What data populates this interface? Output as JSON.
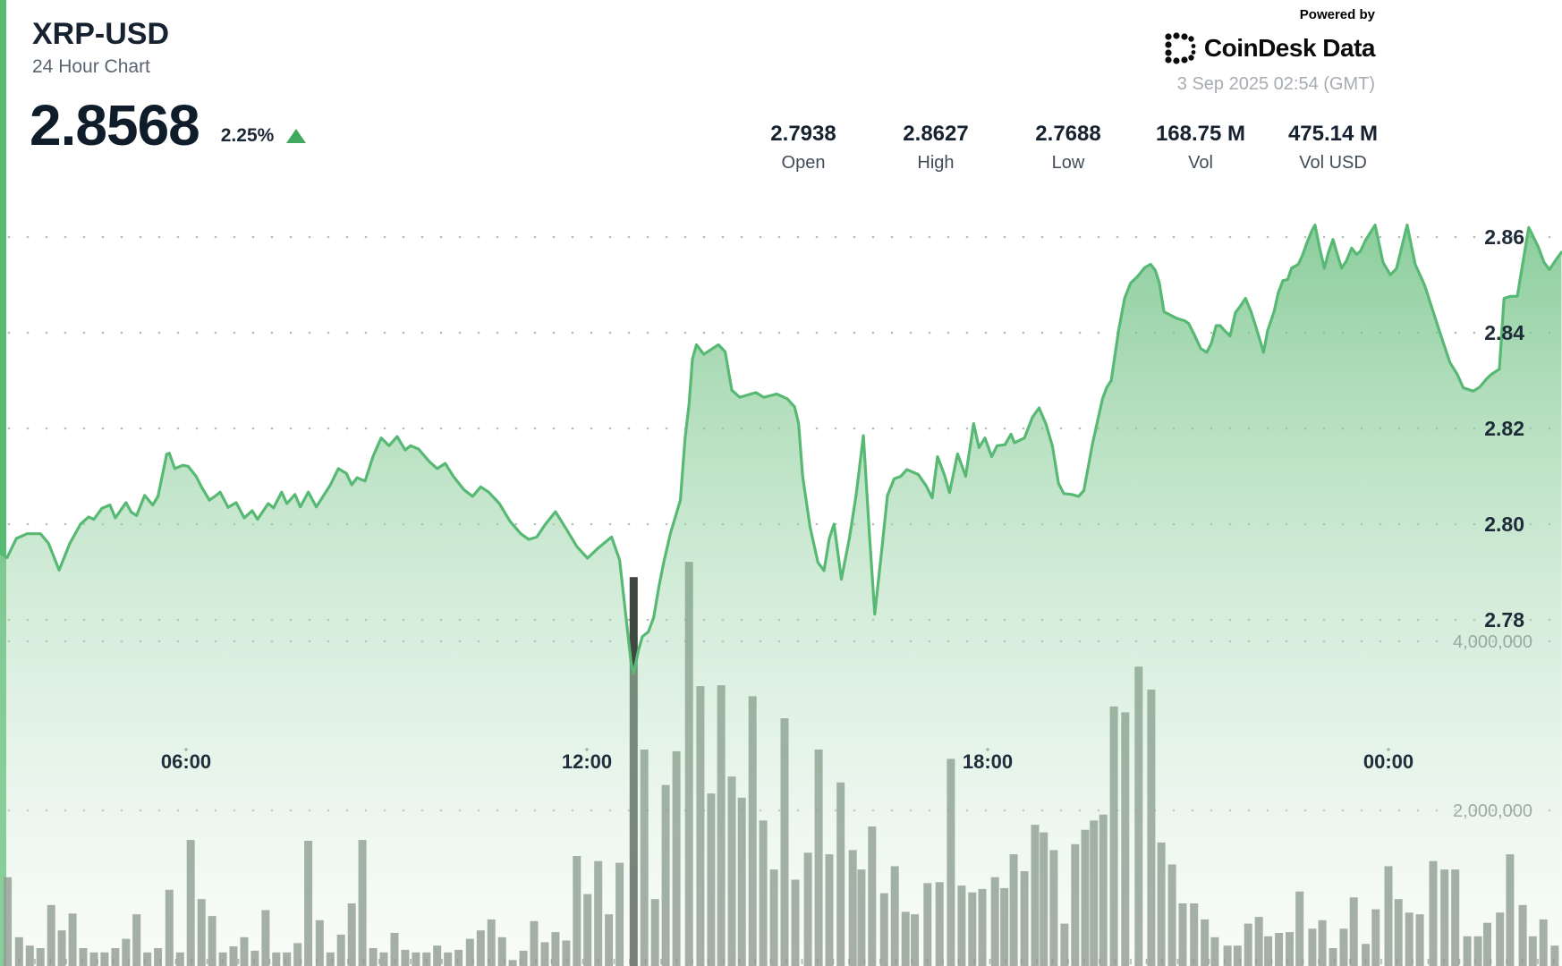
{
  "header": {
    "symbol": "XRP-USD",
    "subtitle": "24 Hour Chart",
    "price": "2.8568",
    "change_percent": "2.25%",
    "change_direction": "up"
  },
  "stats": [
    {
      "value": "2.7938",
      "label": "Open"
    },
    {
      "value": "2.8627",
      "label": "High"
    },
    {
      "value": "2.7688",
      "label": "Low"
    },
    {
      "value": "168.75 M",
      "label": "Vol"
    },
    {
      "value": "475.14 M",
      "label": "Vol USD"
    }
  ],
  "branding": {
    "powered_by": "Powered by",
    "brand": "CoinDesk Data",
    "timestamp": "3 Sep 2025 02:54 (GMT)"
  },
  "chart_data": {
    "type": "area",
    "title": "XRP-USD 24 Hour Chart",
    "x_axis": {
      "tick_labels": [
        "06:00",
        "12:00",
        "18:00",
        "00:00"
      ],
      "tick_hours": [
        6,
        12,
        18,
        24
      ],
      "start_hour": 3.21,
      "end_hour": 26.6,
      "grid": "dotted"
    },
    "price_axis": {
      "side": "right",
      "ticks": [
        2.86,
        2.84,
        2.82,
        2.8,
        2.78
      ],
      "tick_labels": [
        "2.86",
        "2.84",
        "2.82",
        "2.80",
        "2.78"
      ]
    },
    "volume_axis": {
      "side": "right",
      "ticks_millions": [
        4,
        2
      ],
      "tick_labels": [
        "4,000,000",
        "2,000,000"
      ]
    },
    "summary": {
      "open": 2.7938,
      "high": 2.8627,
      "low": 2.7688,
      "close": 2.8568,
      "volume": "168.75M XRP",
      "volume_usd": "475.14M"
    },
    "colors": {
      "accent_strip": "#57bb71",
      "line": "#57b973",
      "fill_top": "rgba(104,190,126,0.78)",
      "fill_mid": "rgba(160,214,172,0.52)",
      "fill_bottom": "rgba(236,245,238,0.32)",
      "volume_bar": "rgba(99,112,100,0.80)",
      "volume_bar_dark": "#3f4741",
      "grid_dot": "rgba(110,120,115,0.50)",
      "up_green": "#3fa95d"
    },
    "price_series": [
      [
        3.21,
        2.794
      ],
      [
        3.32,
        2.793
      ],
      [
        3.46,
        2.797
      ],
      [
        3.62,
        2.798
      ],
      [
        3.82,
        2.798
      ],
      [
        3.94,
        2.796
      ],
      [
        4.1,
        2.7904
      ],
      [
        4.26,
        2.796
      ],
      [
        4.42,
        2.8
      ],
      [
        4.54,
        2.8015
      ],
      [
        4.62,
        2.801
      ],
      [
        4.74,
        2.8033
      ],
      [
        4.86,
        2.804
      ],
      [
        4.94,
        2.8013
      ],
      [
        5.1,
        2.8045
      ],
      [
        5.18,
        2.8025
      ],
      [
        5.26,
        2.8018
      ],
      [
        5.38,
        2.806
      ],
      [
        5.5,
        2.804
      ],
      [
        5.58,
        2.8058
      ],
      [
        5.71,
        2.8146
      ],
      [
        5.75,
        2.8148
      ],
      [
        5.83,
        2.8116
      ],
      [
        5.95,
        2.8123
      ],
      [
        6.03,
        2.8121
      ],
      [
        6.15,
        2.81
      ],
      [
        6.23,
        2.8078
      ],
      [
        6.35,
        2.805
      ],
      [
        6.43,
        2.8058
      ],
      [
        6.51,
        2.8067
      ],
      [
        6.63,
        2.8035
      ],
      [
        6.75,
        2.8045
      ],
      [
        6.87,
        2.8013
      ],
      [
        6.99,
        2.8028
      ],
      [
        7.07,
        2.801
      ],
      [
        7.23,
        2.8043
      ],
      [
        7.31,
        2.8034
      ],
      [
        7.43,
        2.8067
      ],
      [
        7.51,
        2.8043
      ],
      [
        7.63,
        2.8062
      ],
      [
        7.71,
        2.8036
      ],
      [
        7.83,
        2.8067
      ],
      [
        7.95,
        2.8036
      ],
      [
        8.16,
        2.8082
      ],
      [
        8.28,
        2.8116
      ],
      [
        8.4,
        2.8106
      ],
      [
        8.48,
        2.8082
      ],
      [
        8.56,
        2.8097
      ],
      [
        8.68,
        2.809
      ],
      [
        8.8,
        2.8142
      ],
      [
        8.92,
        2.818
      ],
      [
        9.04,
        2.8164
      ],
      [
        9.16,
        2.8183
      ],
      [
        9.28,
        2.8155
      ],
      [
        9.36,
        2.8164
      ],
      [
        9.48,
        2.8157
      ],
      [
        9.64,
        2.8131
      ],
      [
        9.76,
        2.8116
      ],
      [
        9.88,
        2.8127
      ],
      [
        10.0,
        2.81
      ],
      [
        10.16,
        2.8072
      ],
      [
        10.29,
        2.8058
      ],
      [
        10.41,
        2.8078
      ],
      [
        10.53,
        2.8067
      ],
      [
        10.69,
        2.8043
      ],
      [
        10.85,
        2.8006
      ],
      [
        11.01,
        2.798
      ],
      [
        11.13,
        2.7968
      ],
      [
        11.25,
        2.7973
      ],
      [
        11.38,
        2.8
      ],
      [
        11.53,
        2.8026
      ],
      [
        11.69,
        2.799
      ],
      [
        11.85,
        2.7953
      ],
      [
        12.01,
        2.7929
      ],
      [
        12.17,
        2.795
      ],
      [
        12.37,
        2.7973
      ],
      [
        12.49,
        2.7925
      ],
      [
        12.59,
        2.78
      ],
      [
        12.66,
        2.7712
      ],
      [
        12.7,
        2.7688
      ],
      [
        12.77,
        2.7735
      ],
      [
        12.83,
        2.7765
      ],
      [
        12.92,
        2.7775
      ],
      [
        13.0,
        2.7805
      ],
      [
        13.08,
        2.787
      ],
      [
        13.15,
        2.792
      ],
      [
        13.25,
        2.798
      ],
      [
        13.4,
        2.805
      ],
      [
        13.47,
        2.818
      ],
      [
        13.53,
        2.825
      ],
      [
        13.58,
        2.8345
      ],
      [
        13.64,
        2.8375
      ],
      [
        13.75,
        2.8355
      ],
      [
        13.86,
        2.8365
      ],
      [
        13.97,
        2.8375
      ],
      [
        14.07,
        2.836
      ],
      [
        14.17,
        2.828
      ],
      [
        14.29,
        2.8265
      ],
      [
        14.41,
        2.827
      ],
      [
        14.53,
        2.8275
      ],
      [
        14.65,
        2.8265
      ],
      [
        14.84,
        2.8272
      ],
      [
        15.0,
        2.8262
      ],
      [
        15.11,
        2.8245
      ],
      [
        15.17,
        2.821
      ],
      [
        15.23,
        2.81
      ],
      [
        15.34,
        2.7995
      ],
      [
        15.46,
        2.792
      ],
      [
        15.55,
        2.7903
      ],
      [
        15.63,
        2.797
      ],
      [
        15.7,
        2.8
      ],
      [
        15.81,
        2.7885
      ],
      [
        15.93,
        2.797
      ],
      [
        16.03,
        2.806
      ],
      [
        16.14,
        2.8185
      ],
      [
        16.23,
        2.798
      ],
      [
        16.31,
        2.7812
      ],
      [
        16.41,
        2.794
      ],
      [
        16.5,
        2.806
      ],
      [
        16.6,
        2.8095
      ],
      [
        16.7,
        2.81
      ],
      [
        16.79,
        2.8114
      ],
      [
        16.96,
        2.8104
      ],
      [
        17.08,
        2.808
      ],
      [
        17.17,
        2.8055
      ],
      [
        17.25,
        2.8141
      ],
      [
        17.35,
        2.8104
      ],
      [
        17.43,
        2.8066
      ],
      [
        17.55,
        2.8147
      ],
      [
        17.67,
        2.81
      ],
      [
        17.79,
        2.821
      ],
      [
        17.87,
        2.816
      ],
      [
        17.96,
        2.818
      ],
      [
        18.06,
        2.8141
      ],
      [
        18.14,
        2.8164
      ],
      [
        18.26,
        2.8166
      ],
      [
        18.35,
        2.8188
      ],
      [
        18.4,
        2.817
      ],
      [
        18.55,
        2.818
      ],
      [
        18.67,
        2.8223
      ],
      [
        18.77,
        2.8243
      ],
      [
        18.87,
        2.821
      ],
      [
        18.97,
        2.8163
      ],
      [
        19.06,
        2.8085
      ],
      [
        19.14,
        2.8064
      ],
      [
        19.26,
        2.8062
      ],
      [
        19.36,
        2.8058
      ],
      [
        19.44,
        2.807
      ],
      [
        19.57,
        2.8168
      ],
      [
        19.72,
        2.8262
      ],
      [
        19.78,
        2.8285
      ],
      [
        19.85,
        2.83
      ],
      [
        19.96,
        2.8405
      ],
      [
        20.05,
        2.8472
      ],
      [
        20.14,
        2.8504
      ],
      [
        20.24,
        2.8517
      ],
      [
        20.35,
        2.8536
      ],
      [
        20.44,
        2.8543
      ],
      [
        20.51,
        2.853
      ],
      [
        20.57,
        2.8504
      ],
      [
        20.64,
        2.8444
      ],
      [
        20.72,
        2.8438
      ],
      [
        20.83,
        2.843
      ],
      [
        20.95,
        2.8425
      ],
      [
        21.01,
        2.8419
      ],
      [
        21.09,
        2.8397
      ],
      [
        21.19,
        2.8367
      ],
      [
        21.28,
        2.8359
      ],
      [
        21.35,
        2.8378
      ],
      [
        21.42,
        2.8415
      ],
      [
        21.48,
        2.8415
      ],
      [
        21.55,
        2.8404
      ],
      [
        21.63,
        2.8393
      ],
      [
        21.71,
        2.8442
      ],
      [
        21.78,
        2.8455
      ],
      [
        21.86,
        2.8472
      ],
      [
        21.94,
        2.8445
      ],
      [
        22.01,
        2.8415
      ],
      [
        22.09,
        2.8378
      ],
      [
        22.13,
        2.8359
      ],
      [
        22.19,
        2.8404
      ],
      [
        22.29,
        2.8445
      ],
      [
        22.35,
        2.8483
      ],
      [
        22.42,
        2.8509
      ],
      [
        22.49,
        2.8511
      ],
      [
        22.55,
        2.8535
      ],
      [
        22.65,
        2.8543
      ],
      [
        22.71,
        2.8561
      ],
      [
        22.78,
        2.8588
      ],
      [
        22.85,
        2.8612
      ],
      [
        22.9,
        2.8625
      ],
      [
        22.97,
        2.8577
      ],
      [
        23.04,
        2.8535
      ],
      [
        23.1,
        2.8567
      ],
      [
        23.17,
        2.8595
      ],
      [
        23.24,
        2.8561
      ],
      [
        23.3,
        2.8535
      ],
      [
        23.37,
        2.855
      ],
      [
        23.45,
        2.8577
      ],
      [
        23.52,
        2.8564
      ],
      [
        23.58,
        2.857
      ],
      [
        23.66,
        2.8594
      ],
      [
        23.8,
        2.8625
      ],
      [
        23.92,
        2.8547
      ],
      [
        24.03,
        2.8521
      ],
      [
        24.12,
        2.8534
      ],
      [
        24.28,
        2.8625
      ],
      [
        24.4,
        2.8543
      ],
      [
        24.54,
        2.85
      ],
      [
        24.67,
        2.8444
      ],
      [
        24.8,
        2.8388
      ],
      [
        24.92,
        2.8338
      ],
      [
        25.03,
        2.8313
      ],
      [
        25.12,
        2.8285
      ],
      [
        25.27,
        2.8278
      ],
      [
        25.37,
        2.8287
      ],
      [
        25.47,
        2.8304
      ],
      [
        25.54,
        2.8313
      ],
      [
        25.66,
        2.8324
      ],
      [
        25.73,
        2.8472
      ],
      [
        25.83,
        2.8476
      ],
      [
        25.93,
        2.8476
      ],
      [
        25.97,
        2.8511
      ],
      [
        26.1,
        2.862
      ],
      [
        26.24,
        2.858
      ],
      [
        26.33,
        2.8547
      ],
      [
        26.41,
        2.8532
      ],
      [
        26.5,
        2.8551
      ],
      [
        26.59,
        2.8568
      ]
    ],
    "volume_series_millions": [
      [
        3.33,
        1.21
      ],
      [
        3.5,
        0.5
      ],
      [
        3.66,
        0.4
      ],
      [
        3.82,
        0.37
      ],
      [
        3.98,
        0.88
      ],
      [
        4.14,
        0.58
      ],
      [
        4.3,
        0.78
      ],
      [
        4.46,
        0.37
      ],
      [
        4.62,
        0.32
      ],
      [
        4.78,
        0.32
      ],
      [
        4.94,
        0.37
      ],
      [
        5.1,
        0.48
      ],
      [
        5.26,
        0.77
      ],
      [
        5.42,
        0.32
      ],
      [
        5.58,
        0.37
      ],
      [
        5.75,
        1.06
      ],
      [
        5.91,
        0.32
      ],
      [
        6.07,
        1.65
      ],
      [
        6.23,
        0.95
      ],
      [
        6.39,
        0.75
      ],
      [
        6.55,
        0.32
      ],
      [
        6.71,
        0.39
      ],
      [
        6.87,
        0.5
      ],
      [
        7.03,
        0.34
      ],
      [
        7.19,
        0.82
      ],
      [
        7.35,
        0.32
      ],
      [
        7.51,
        0.32
      ],
      [
        7.67,
        0.43
      ],
      [
        7.83,
        1.64
      ],
      [
        8.0,
        0.7
      ],
      [
        8.16,
        0.32
      ],
      [
        8.32,
        0.53
      ],
      [
        8.48,
        0.9
      ],
      [
        8.64,
        1.65
      ],
      [
        8.8,
        0.37
      ],
      [
        8.96,
        0.32
      ],
      [
        9.12,
        0.55
      ],
      [
        9.28,
        0.35
      ],
      [
        9.44,
        0.32
      ],
      [
        9.6,
        0.32
      ],
      [
        9.76,
        0.4
      ],
      [
        9.92,
        0.32
      ],
      [
        10.08,
        0.35
      ],
      [
        10.25,
        0.48
      ],
      [
        10.41,
        0.58
      ],
      [
        10.57,
        0.71
      ],
      [
        10.73,
        0.5
      ],
      [
        10.89,
        0.23
      ],
      [
        11.05,
        0.34
      ],
      [
        11.21,
        0.69
      ],
      [
        11.37,
        0.44
      ],
      [
        11.53,
        0.56
      ],
      [
        11.69,
        0.46
      ],
      [
        11.85,
        1.46
      ],
      [
        12.01,
        1.01
      ],
      [
        12.17,
        1.4
      ],
      [
        12.33,
        0.77
      ],
      [
        12.49,
        1.38
      ],
      [
        12.7,
        4.76
      ],
      [
        12.86,
        2.72
      ],
      [
        13.02,
        0.95
      ],
      [
        13.18,
        2.3
      ],
      [
        13.34,
        2.7
      ],
      [
        13.53,
        4.94
      ],
      [
        13.7,
        3.47
      ],
      [
        13.86,
        2.2
      ],
      [
        14.01,
        3.48
      ],
      [
        14.17,
        2.4
      ],
      [
        14.32,
        2.15
      ],
      [
        14.48,
        3.35
      ],
      [
        14.64,
        1.88
      ],
      [
        14.8,
        1.3
      ],
      [
        14.96,
        3.09
      ],
      [
        15.12,
        1.18
      ],
      [
        15.31,
        1.5
      ],
      [
        15.47,
        2.72
      ],
      [
        15.63,
        1.48
      ],
      [
        15.8,
        2.33
      ],
      [
        15.98,
        1.53
      ],
      [
        16.11,
        1.3
      ],
      [
        16.27,
        1.81
      ],
      [
        16.45,
        1.02
      ],
      [
        16.61,
        1.34
      ],
      [
        16.77,
        0.8
      ],
      [
        16.91,
        0.77
      ],
      [
        17.1,
        1.14
      ],
      [
        17.28,
        1.15
      ],
      [
        17.45,
        2.61
      ],
      [
        17.61,
        1.11
      ],
      [
        17.77,
        1.03
      ],
      [
        17.92,
        1.07
      ],
      [
        18.11,
        1.21
      ],
      [
        18.25,
        1.08
      ],
      [
        18.39,
        1.48
      ],
      [
        18.55,
        1.28
      ],
      [
        18.71,
        1.83
      ],
      [
        18.84,
        1.74
      ],
      [
        18.99,
        1.53
      ],
      [
        19.15,
        0.66
      ],
      [
        19.31,
        1.6
      ],
      [
        19.46,
        1.77
      ],
      [
        19.59,
        1.88
      ],
      [
        19.73,
        1.95
      ],
      [
        19.89,
        3.23
      ],
      [
        20.06,
        3.16
      ],
      [
        20.26,
        3.7
      ],
      [
        20.45,
        3.43
      ],
      [
        20.6,
        1.62
      ],
      [
        20.76,
        1.36
      ],
      [
        20.92,
        0.9
      ],
      [
        21.09,
        0.9
      ],
      [
        21.25,
        0.71
      ],
      [
        21.4,
        0.5
      ],
      [
        21.59,
        0.4
      ],
      [
        21.74,
        0.4
      ],
      [
        21.9,
        0.66
      ],
      [
        22.06,
        0.74
      ],
      [
        22.2,
        0.51
      ],
      [
        22.36,
        0.55
      ],
      [
        22.52,
        0.56
      ],
      [
        22.67,
        1.04
      ],
      [
        22.86,
        0.6
      ],
      [
        23.01,
        0.7
      ],
      [
        23.17,
        0.37
      ],
      [
        23.33,
        0.6
      ],
      [
        23.48,
        0.97
      ],
      [
        23.66,
        0.42
      ],
      [
        23.81,
        0.83
      ],
      [
        24.0,
        1.34
      ],
      [
        24.15,
        0.95
      ],
      [
        24.31,
        0.79
      ],
      [
        24.47,
        0.77
      ],
      [
        24.67,
        1.4
      ],
      [
        24.84,
        1.3
      ],
      [
        25.0,
        1.3
      ],
      [
        25.18,
        0.51
      ],
      [
        25.34,
        0.51
      ],
      [
        25.48,
        0.67
      ],
      [
        25.67,
        0.79
      ],
      [
        25.82,
        1.48
      ],
      [
        26.01,
        0.88
      ],
      [
        26.16,
        0.51
      ],
      [
        26.32,
        0.71
      ],
      [
        26.49,
        0.4
      ]
    ],
    "volume_highlight_hour": 12.7
  }
}
